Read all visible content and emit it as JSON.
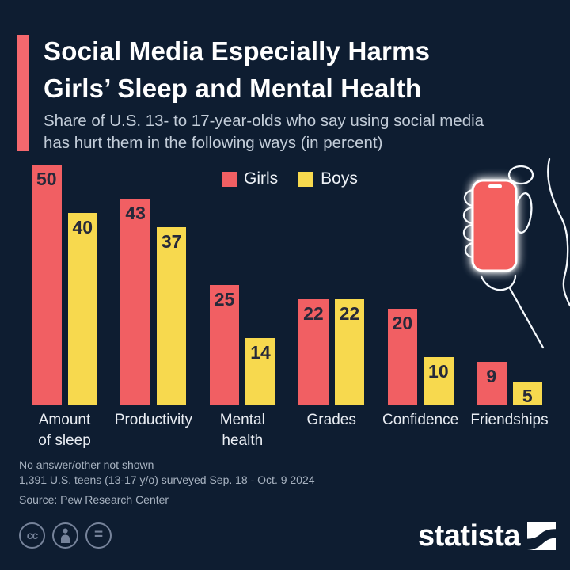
{
  "colors": {
    "background": "#0e1d31",
    "accent_red": "#f4686e",
    "girls_red": "#f15f63",
    "boys_yellow": "#f7d94e",
    "bar_label": "#26293a",
    "phone_red": "#f4605f"
  },
  "header": {
    "title_line1": "Social Media Especially Harms",
    "title_line2": "Girls’ Sleep and Mental Health",
    "subtitle_line1": "Share of U.S. 13- to 17-year-olds who say using social media",
    "subtitle_line2": "has hurt them in the following ways (in percent)"
  },
  "legend": [
    {
      "label": "Girls",
      "color": "#f15f63"
    },
    {
      "label": "Boys",
      "color": "#f7d94e"
    }
  ],
  "chart_data": {
    "type": "bar",
    "categories": [
      "Amount\nof sleep",
      "Productivity",
      "Mental\nhealth",
      "Grades",
      "Confidence",
      "Friendships"
    ],
    "series": [
      {
        "name": "Girls",
        "color": "#f15f63",
        "values": [
          50,
          43,
          25,
          22,
          20,
          9
        ]
      },
      {
        "name": "Boys",
        "color": "#f7d94e",
        "values": [
          40,
          37,
          14,
          22,
          10,
          5
        ]
      }
    ],
    "title": "Social Media Especially Harms Girls’ Sleep and Mental Health",
    "xlabel": "",
    "ylabel": "",
    "ylim": [
      0,
      50
    ],
    "grid": false,
    "legend_position": "top",
    "value_labels": "inside-top"
  },
  "illustration": {
    "name": "hand-holding-phone",
    "phone_color": "#f4605f"
  },
  "footer": {
    "note_line1": "No answer/other not shown",
    "note_line2": "1,391 U.S. teens (13-17 y/o) surveyed Sep. 18 - Oct. 9 2024",
    "source": "Source: Pew Research Center"
  },
  "branding": {
    "logo_text": "statista",
    "license_badges": [
      "cc",
      "attribution-person",
      "no-derivatives-equals"
    ],
    "cc_glyph": "cc",
    "equals_glyph": "="
  }
}
